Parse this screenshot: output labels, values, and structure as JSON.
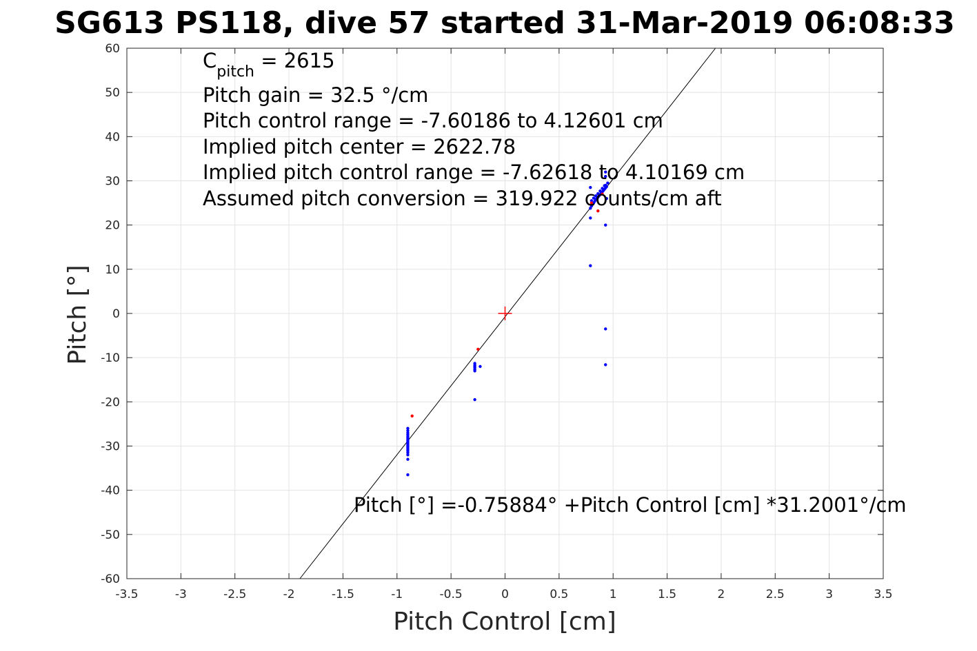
{
  "chart_data": {
    "type": "scatter",
    "title": "SG613 PS118, dive 57 started 31-Mar-2019 06:08:33",
    "xlabel": "Pitch Control [cm]",
    "ylabel": "Pitch [°]",
    "xlim": [
      -3.5,
      3.5
    ],
    "ylim": [
      -60,
      60
    ],
    "xticks": [
      "-3.5",
      "-3",
      "-2.5",
      "-2",
      "-1.5",
      "-1",
      "-0.5",
      "0",
      "0.5",
      "1",
      "1.5",
      "2",
      "2.5",
      "3",
      "3.5"
    ],
    "yticks": [
      "-60",
      "-50",
      "-40",
      "-30",
      "-20",
      "-10",
      "0",
      "10",
      "20",
      "30",
      "40",
      "50",
      "60"
    ],
    "grid": true,
    "annotations": {
      "cpitch_base": "C",
      "cpitch_sub": "pitch",
      "cpitch_value": " = 2615",
      "pitch_gain": "Pitch gain = 32.5 °/cm",
      "control_range": "Pitch control range = -7.60186 to 4.12601 cm",
      "implied_center": "Implied pitch center = 2622.78",
      "implied_range": "Implied pitch control range = -7.62618 to 4.10169 cm",
      "conversion": "Assumed pitch conversion = 319.922 counts/cm aft",
      "fit_equation": "Pitch [°] =-0.75884° +Pitch Control [cm] *31.2001°/cm"
    },
    "fit_line": {
      "intercept": -0.75884,
      "slope": 31.2001,
      "color": "#000000"
    },
    "center_marker": {
      "x": 0,
      "y": 0,
      "color": "#ff0000"
    },
    "series": [
      {
        "color": "#0000ff",
        "points": [
          [
            -0.9,
            -26.0
          ],
          [
            -0.9,
            -26.5
          ],
          [
            -0.9,
            -27.0
          ],
          [
            -0.9,
            -27.4
          ],
          [
            -0.9,
            -27.8
          ],
          [
            -0.9,
            -28.1
          ],
          [
            -0.9,
            -28.4
          ],
          [
            -0.9,
            -28.7
          ],
          [
            -0.9,
            -29.0
          ],
          [
            -0.9,
            -29.3
          ],
          [
            -0.9,
            -29.6
          ],
          [
            -0.9,
            -29.9
          ],
          [
            -0.9,
            -30.2
          ],
          [
            -0.9,
            -30.5
          ],
          [
            -0.9,
            -30.8
          ],
          [
            -0.9,
            -31.1
          ],
          [
            -0.9,
            -31.5
          ],
          [
            -0.9,
            -32.0
          ],
          [
            -0.9,
            -33.0
          ],
          [
            -0.9,
            -36.5
          ],
          [
            -0.28,
            -11.3
          ],
          [
            -0.28,
            -11.7
          ],
          [
            -0.28,
            -12.0
          ],
          [
            -0.28,
            -12.3
          ],
          [
            -0.28,
            -12.7
          ],
          [
            -0.28,
            -13.0
          ],
          [
            -0.23,
            -12.0
          ],
          [
            -0.28,
            -19.5
          ],
          [
            0.79,
            23.8
          ],
          [
            0.8,
            24.3
          ],
          [
            0.81,
            24.7
          ],
          [
            0.82,
            25.0
          ],
          [
            0.83,
            25.4
          ],
          [
            0.84,
            25.8
          ],
          [
            0.85,
            26.0
          ],
          [
            0.86,
            26.3
          ],
          [
            0.87,
            26.6
          ],
          [
            0.88,
            26.9
          ],
          [
            0.89,
            27.2
          ],
          [
            0.9,
            27.5
          ],
          [
            0.91,
            27.8
          ],
          [
            0.92,
            28.1
          ],
          [
            0.93,
            28.4
          ],
          [
            0.94,
            28.7
          ],
          [
            0.93,
            29.0
          ],
          [
            0.92,
            28.9
          ],
          [
            0.9,
            28.3
          ],
          [
            0.88,
            27.7
          ],
          [
            0.86,
            27.1
          ],
          [
            0.84,
            26.6
          ],
          [
            0.82,
            26.1
          ],
          [
            0.8,
            25.5
          ],
          [
            0.93,
            32.0
          ],
          [
            0.93,
            31.0
          ],
          [
            0.79,
            28.5
          ],
          [
            0.94,
            26.0
          ],
          [
            0.95,
            29.5
          ],
          [
            0.79,
            21.6
          ],
          [
            0.93,
            20.0
          ],
          [
            0.79,
            10.8
          ],
          [
            0.93,
            -3.5
          ],
          [
            0.93,
            -11.6
          ]
        ]
      },
      {
        "color": "#ff0000",
        "points": [
          [
            -0.86,
            -23.2
          ],
          [
            -0.25,
            -8.1
          ],
          [
            0.86,
            23.2
          ],
          [
            0.8,
            25.0
          ],
          [
            0.9,
            27.0
          ]
        ]
      }
    ]
  }
}
